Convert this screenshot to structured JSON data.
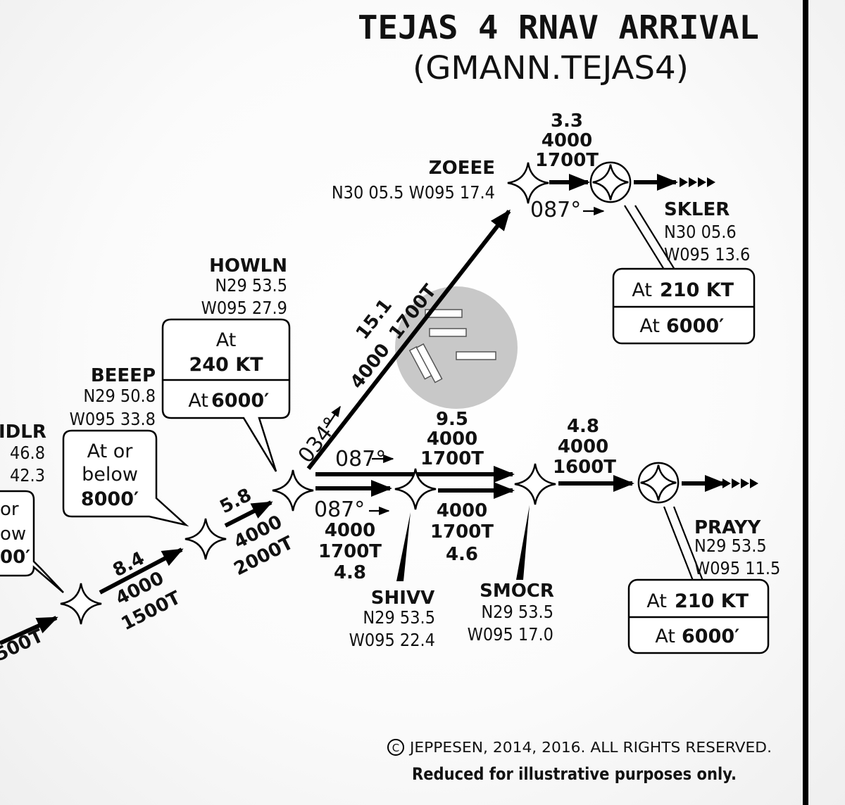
{
  "title": "TEJAS 4 RNAV ARRIVAL",
  "subtitle": "(GMANN.TEJAS4)",
  "waypoints": {
    "idlr": {
      "name": "IDLR",
      "lat": "46.8",
      "lon": "42.3"
    },
    "beeep": {
      "name": "BEEEP",
      "lat": "N29  50.8",
      "lon": "W095  33.8"
    },
    "howln": {
      "name": "HOWLN",
      "lat": "N29  53.5",
      "lon": "W095  27.9"
    },
    "zoeee": {
      "name": "ZOEEE",
      "coord": "N30  05.5  W095  17.4"
    },
    "skler": {
      "name": "SKLER",
      "lat": "N30  05.6",
      "lon": "W095  13.6"
    },
    "shivv": {
      "name": "SHIVV",
      "lat": "N29  53.5",
      "lon": "W095  22.4"
    },
    "smocr": {
      "name": "SMOCR",
      "lat": "N29  53.5",
      "lon": "W095  17.0"
    },
    "prayy": {
      "name": "PRAYY",
      "lat": "N29  53.5",
      "lon": "W095  11.5"
    }
  },
  "restrictions": {
    "idlr": {
      "line1": "or",
      "line2": "ow",
      "line3": "00′"
    },
    "beeep": {
      "line1": "At or",
      "line2": "below",
      "line3": "8000′"
    },
    "howln": {
      "line1": "At",
      "speed": "240 KT",
      "alt_prefix": "At",
      "alt": "6000′"
    },
    "skler": {
      "speed_prefix": "At",
      "speed": "210 KT",
      "alt_prefix": "At",
      "alt": "6000′"
    },
    "prayy": {
      "speed_prefix": "At",
      "speed": "210 KT",
      "alt_prefix": "At",
      "alt": "6000′"
    }
  },
  "legs": {
    "leg_left": {
      "mea": "500T"
    },
    "leg_8_4": {
      "dist": "8.4",
      "alt": "4000",
      "mea": "1500T"
    },
    "leg_5_8": {
      "dist": "5.8",
      "alt": "4000",
      "mea": "2000T"
    },
    "leg_15_1": {
      "dist": "15.1",
      "alt": "4000",
      "mea": "1700T",
      "course": "034°"
    },
    "leg_3_3": {
      "dist": "3.3",
      "alt": "4000",
      "mea": "1700T",
      "course": "087°"
    },
    "leg_9_5": {
      "dist": "9.5",
      "alt": "4000",
      "mea": "1700T",
      "course": "087°"
    },
    "leg_4_8_low": {
      "course": "087°",
      "alt": "4000",
      "mea": "1700T",
      "dist": "4.8"
    },
    "leg_4_6": {
      "alt": "4000",
      "mea": "1700T",
      "dist": "4.6"
    },
    "leg_4_8_right": {
      "dist": "4.8",
      "alt": "4000",
      "mea": "1600T"
    }
  },
  "footer": {
    "copyright": "JEPPESEN, 2014, 2016. ALL RIGHTS RESERVED.",
    "copyright_symbol": "C",
    "note": "Reduced for illustrative purposes only."
  },
  "icons": [
    "waypoint-star-icon",
    "fly-over-waypoint-icon",
    "airport-runways-icon",
    "direction-arrow-icon"
  ]
}
